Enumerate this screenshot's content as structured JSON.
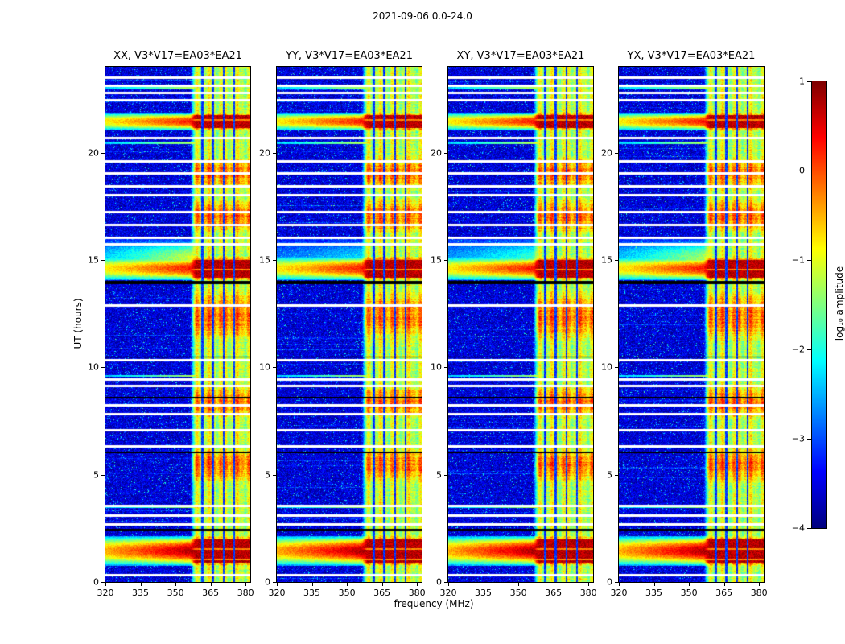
{
  "chart_data": {
    "type": "heatmap",
    "title": "2021-09-06 0.0-24.0",
    "xlabel": "frequency (MHz)",
    "ylabel": "UT (hours)",
    "panels": [
      {
        "title": "XX, V3*V17=EA03*EA21"
      },
      {
        "title": "YY, V3*V17=EA03*EA21"
      },
      {
        "title": "XY, V3*V17=EA03*EA21"
      },
      {
        "title": "YX, V3*V17=EA03*EA21"
      }
    ],
    "x_range_mhz": [
      320,
      382
    ],
    "y_range_hours": [
      0,
      24
    ],
    "x_ticks": [
      320,
      335,
      350,
      365,
      380
    ],
    "y_ticks": [
      0,
      5,
      10,
      15,
      20
    ],
    "colorbar": {
      "label": "log₁₀ amplitude",
      "colormap": "jet",
      "range": [
        -4,
        1
      ],
      "ticks": [
        1,
        0,
        -1,
        -2,
        -3,
        -4
      ]
    },
    "features": {
      "background_level": -4,
      "rfi_band_mhz": [
        357,
        382
      ],
      "band_edge_blend_mhz": [
        356,
        359
      ],
      "band_dark_lines_mhz": [
        361.5,
        366,
        370.5,
        375.2
      ],
      "strong_burst_hours": [
        [
          0.7,
          2.2,
          1.15
        ],
        [
          14.0,
          15.2,
          1.0
        ],
        [
          21.0,
          21.9,
          1.0
        ]
      ],
      "moderate_band_hours": [
        [
          4.6,
          6.3
        ],
        [
          7.6,
          9.2
        ],
        [
          11.2,
          13.6
        ],
        [
          16.2,
          17.9
        ],
        [
          18.3,
          19.8
        ]
      ],
      "diffuse_wedge_hours": [
        [
          14.2,
          16.0
        ]
      ],
      "wedge_scale_per_panel": [
        1.0,
        0.45,
        0.65,
        0.9
      ],
      "white_gap_hours": [
        0.35,
        2.7,
        3.1,
        3.55,
        6.35,
        7.1,
        7.85,
        8.25,
        9.15,
        9.45,
        10.35,
        12.9,
        15.75,
        16.05,
        16.65,
        17.25,
        18.05,
        18.45,
        19.05,
        19.6,
        20.7,
        22.45,
        22.8,
        23.15,
        23.5
      ],
      "black_line_hours": [
        [
          2.45,
          3
        ],
        [
          6.05,
          2
        ],
        [
          8.6,
          2
        ],
        [
          10.5,
          1
        ],
        [
          13.95,
          4
        ]
      ],
      "thin_bright_hours": [
        3.5,
        9.6,
        20.45,
        23.0
      ]
    }
  }
}
